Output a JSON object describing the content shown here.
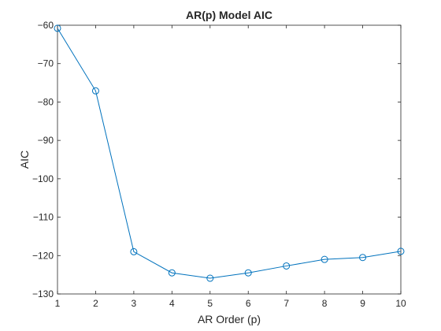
{
  "chart_data": {
    "type": "line",
    "title": "AR(p) Model AIC",
    "xlabel": "AR Order (p)",
    "ylabel": "AIC",
    "xlim": [
      1,
      10
    ],
    "ylim": [
      -130,
      -60
    ],
    "xticks": [
      1,
      2,
      3,
      4,
      5,
      6,
      7,
      8,
      9,
      10
    ],
    "yticks": [
      -130,
      -120,
      -110,
      -100,
      -90,
      -80,
      -70,
      -60
    ],
    "grid": false,
    "marker": "circle",
    "line_color": "#0072BD",
    "series": [
      {
        "x": [
          1,
          2,
          3,
          4,
          5,
          6,
          7,
          8,
          9,
          10
        ],
        "values": [
          -60.8,
          -77.1,
          -119.0,
          -124.5,
          -125.9,
          -124.5,
          -122.7,
          -121.0,
          -120.5,
          -118.9
        ]
      }
    ]
  }
}
